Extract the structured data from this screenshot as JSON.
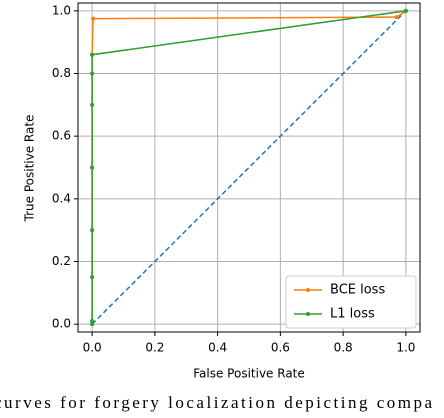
{
  "chart_data": {
    "type": "line",
    "xlabel": "False Positive Rate",
    "ylabel": "True Positive Rate",
    "xlim": [
      -0.045,
      1.045
    ],
    "ylim": [
      -0.025,
      1.025
    ],
    "xticks": [
      {
        "value": 0,
        "label": "0.0"
      },
      0.2,
      0.4,
      0.6,
      0.8,
      {
        "value": 1,
        "label": "1.0"
      }
    ],
    "yticks": [
      {
        "value": 0,
        "label": "0.0"
      },
      0.2,
      0.4,
      0.6,
      0.8,
      {
        "value": 1,
        "label": "1.0"
      }
    ],
    "grid": true,
    "legend": "lower right",
    "reference_line": {
      "x": [
        0,
        1
      ],
      "y": [
        0,
        1
      ],
      "color": "#1f77b4"
    },
    "series": [
      {
        "name": "BCE loss",
        "color": "#ff7f0e",
        "x": [
          0,
          0,
          0,
          0.003,
          0.97,
          1
        ],
        "y": [
          0,
          0.5,
          0.86,
          0.975,
          0.98,
          1
        ]
      },
      {
        "name": "L1 loss",
        "color": "#2ca02c",
        "x": [
          0,
          0,
          0,
          0,
          0,
          0,
          0,
          0,
          1
        ],
        "y": [
          0,
          0.01,
          0.15,
          0.3,
          0.5,
          0.7,
          0.8,
          0.86,
          1
        ]
      }
    ]
  },
  "caption": "curves for forgery localization depicting compa"
}
